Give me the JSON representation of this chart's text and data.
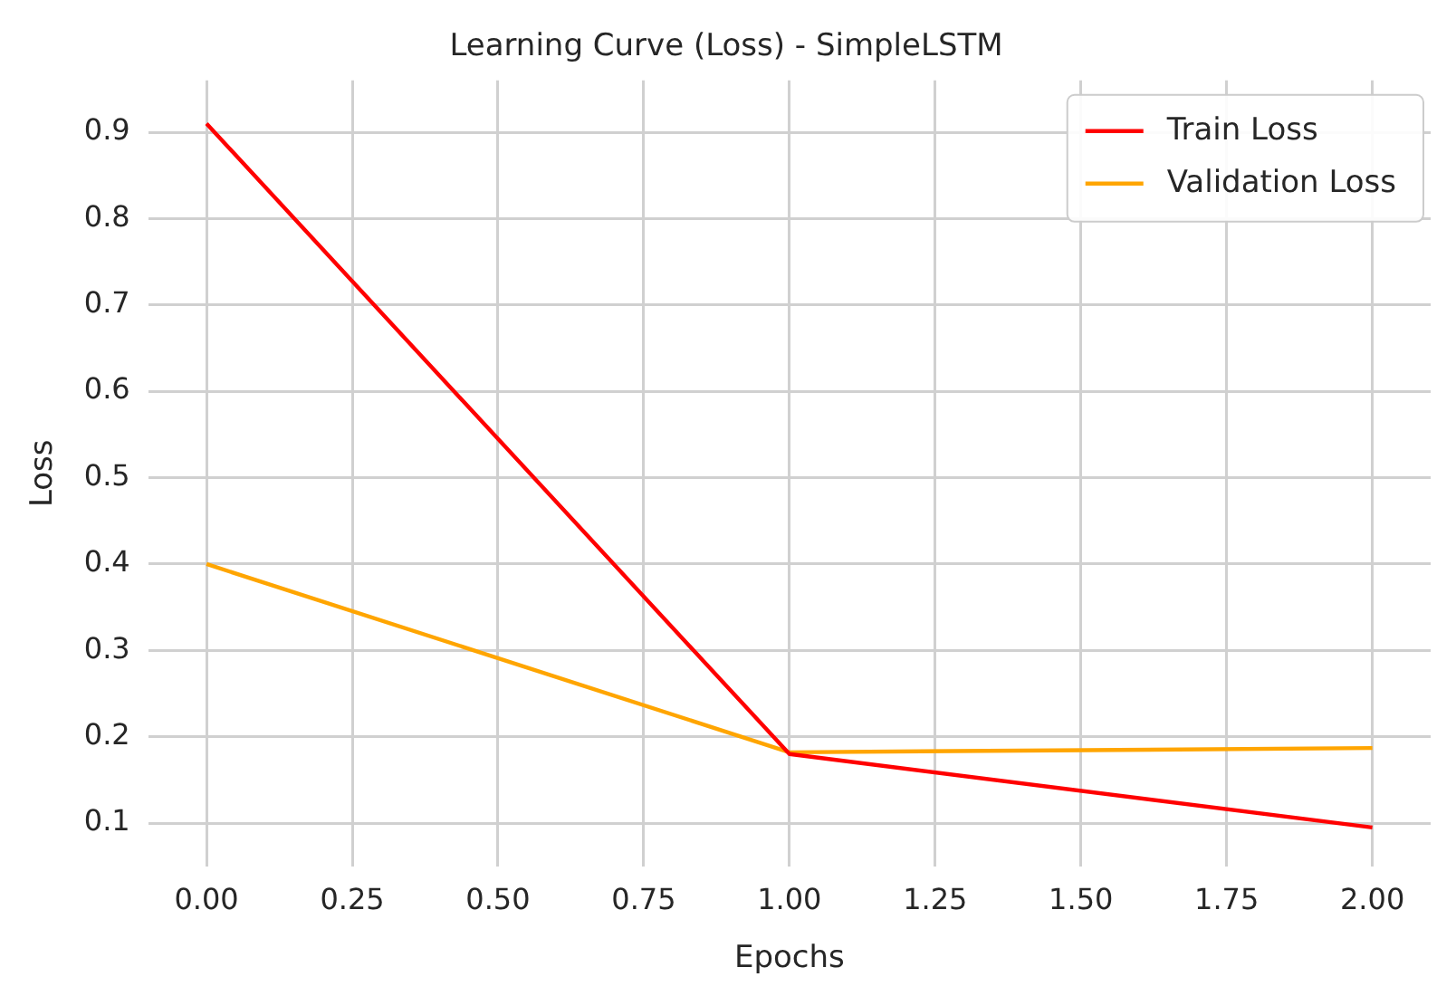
{
  "chart_data": {
    "type": "line",
    "title": "Learning Curve (Loss) - SimpleLSTM",
    "xlabel": "Epochs",
    "ylabel": "Loss",
    "x": [
      0,
      1,
      2
    ],
    "series": [
      {
        "name": "Train Loss",
        "color": "#ff0000",
        "values": [
          0.91,
          0.18,
          0.095
        ]
      },
      {
        "name": "Validation Loss",
        "color": "#ffa500",
        "values": [
          0.4,
          0.182,
          0.187
        ]
      }
    ],
    "xlim": [
      -0.1,
      2.1
    ],
    "xticks": [
      {
        "value": 0,
        "label": "0.00"
      },
      {
        "value": 0.25,
        "label": "0.25"
      },
      {
        "value": 0.5,
        "label": "0.50"
      },
      {
        "value": 0.75,
        "label": "0.75"
      },
      {
        "value": 1,
        "label": "1.00"
      },
      {
        "value": 1.25,
        "label": "1.25"
      },
      {
        "value": 1.5,
        "label": "1.50"
      },
      {
        "value": 1.75,
        "label": "1.75"
      },
      {
        "value": 2,
        "label": "2.00"
      }
    ],
    "ylim": [
      0.05,
      0.96
    ],
    "yticks": [
      0.1,
      0.2,
      0.3,
      0.4,
      0.5,
      0.6,
      0.7,
      0.8,
      0.9
    ],
    "grid": true,
    "legend": "top right",
    "marker": "none",
    "line_style": "solid"
  }
}
